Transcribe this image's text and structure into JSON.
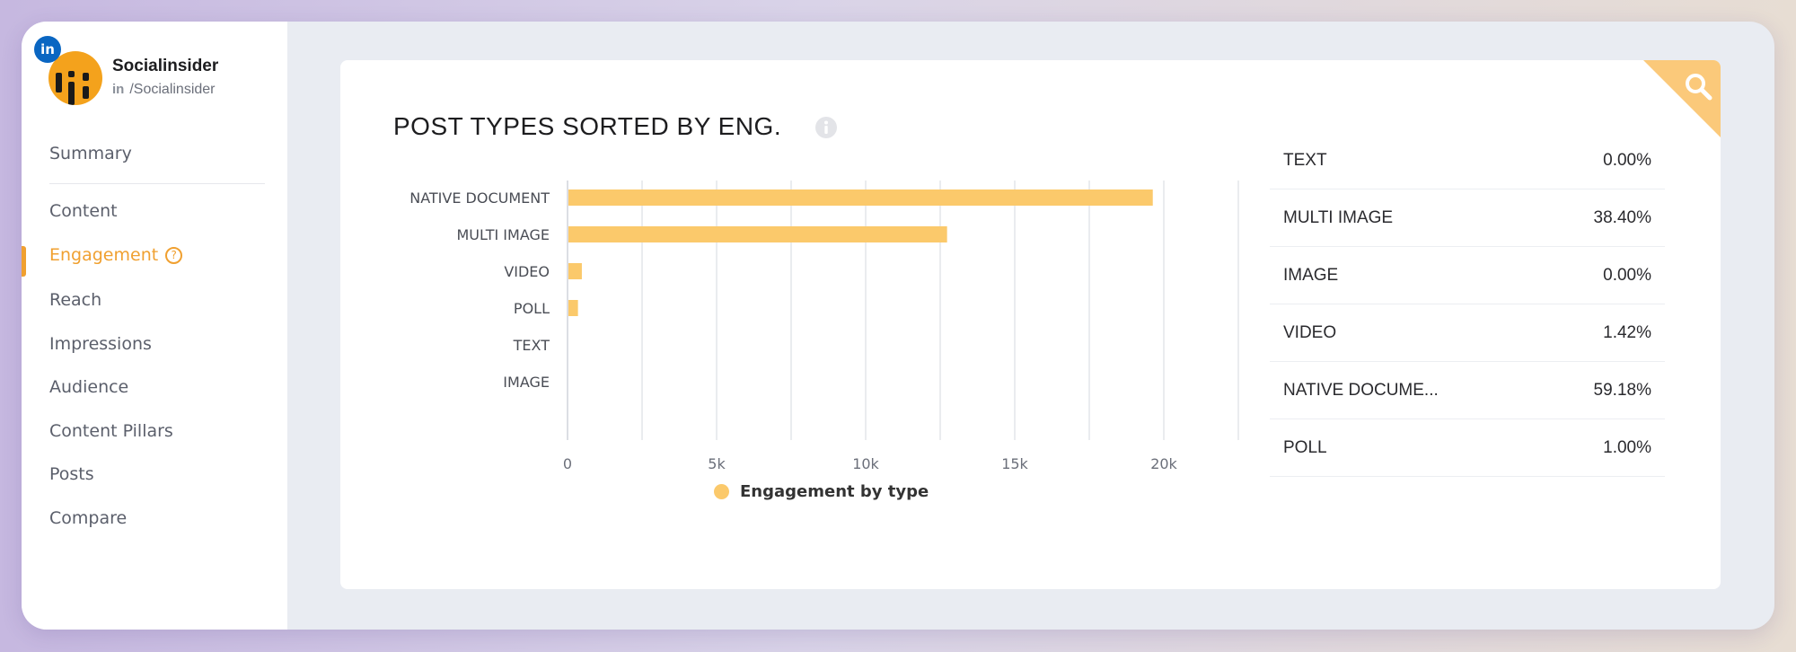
{
  "sidebar": {
    "brand_name": "Socialinsider",
    "brand_handle": "/Socialinsider",
    "network_badge": "in",
    "items": [
      {
        "label": "Summary"
      },
      {
        "label": "Content"
      },
      {
        "label": "Engagement",
        "active": true
      },
      {
        "label": "Reach"
      },
      {
        "label": "Impressions"
      },
      {
        "label": "Audience"
      },
      {
        "label": "Content Pillars"
      },
      {
        "label": "Posts"
      },
      {
        "label": "Compare"
      }
    ]
  },
  "card": {
    "title": "POST TYPES SORTED BY ENG.",
    "info_icon": "info-icon",
    "corner_icon": "search-icon"
  },
  "chart_data": {
    "type": "bar",
    "orientation": "horizontal",
    "categories": [
      "NATIVE DOCUMENT",
      "MULTI IMAGE",
      "VIDEO",
      "POLL",
      "TEXT",
      "IMAGE"
    ],
    "series": [
      {
        "name": "Engagement by type",
        "values": [
          19600,
          12700,
          450,
          320,
          0,
          0
        ],
        "color": "#fbc96b"
      }
    ],
    "xlim": [
      0,
      22500
    ],
    "xticks": [
      0,
      5000,
      10000,
      15000,
      20000
    ],
    "xtick_labels": [
      "0",
      "5k",
      "10k",
      "15k",
      "20k"
    ],
    "grid": true,
    "legend_position": "bottom"
  },
  "table": {
    "rows": [
      {
        "label": "TEXT",
        "value": "0.00%"
      },
      {
        "label": "MULTI IMAGE",
        "value": "38.40%"
      },
      {
        "label": "IMAGE",
        "value": "0.00%"
      },
      {
        "label": "VIDEO",
        "value": "1.42%"
      },
      {
        "label": "NATIVE DOCUME...",
        "value": "59.18%"
      },
      {
        "label": "POLL",
        "value": "1.00%"
      }
    ]
  },
  "colors": {
    "accent": "#f0a030",
    "bar": "#fbc96b",
    "corner": "#fbc97a",
    "linkedin": "#0a66c2"
  }
}
